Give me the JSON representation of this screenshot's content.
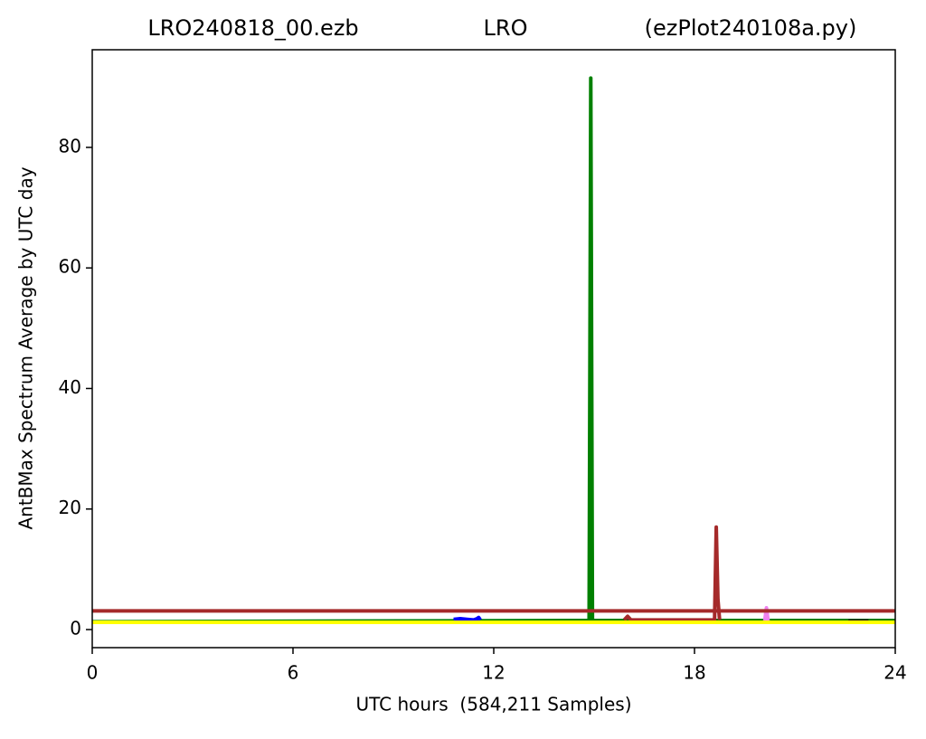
{
  "chart_data": {
    "type": "line",
    "title_left": "LRO240818_00.ezb",
    "title": "LRO",
    "title_right": "(ezPlot240108a.py)",
    "x_label": "UTC hours  (584,211 Samples)",
    "y_label": "AntBMax Spectrum Average by UTC day",
    "xlim": [
      0,
      24
    ],
    "xticks": [
      0,
      6,
      12,
      18,
      24
    ],
    "ylim": [
      -3,
      96.2
    ],
    "yticks": [
      0,
      20,
      40,
      60,
      80
    ],
    "series": [
      {
        "color": "#008000",
        "x": [
          0,
          0.35,
          14.85,
          14.9,
          14.95,
          24
        ],
        "values": [
          1.3,
          1.3,
          1.5,
          91.5,
          1.5,
          1.5
        ]
      },
      {
        "color": "#0000ff",
        "x": [
          10.8,
          11.0,
          11.2,
          11.4,
          11.5,
          11.55,
          11.6
        ],
        "values": [
          1.7,
          1.8,
          1.7,
          1.6,
          1.8,
          2.0,
          1.6
        ]
      },
      {
        "color": "#a52a2a",
        "x": [
          15.9,
          16.0,
          16.1,
          18.6,
          18.65,
          18.7,
          18.75
        ],
        "values": [
          1.6,
          2.2,
          1.6,
          1.6,
          17,
          5,
          1.6
        ]
      },
      {
        "color": "#ee82ee",
        "x": [
          20.1,
          20.15,
          20.2
        ],
        "values": [
          1.5,
          3.6,
          1.5
        ]
      },
      {
        "color": "#1a1a1a",
        "x": [
          22.6,
          23.2
        ],
        "values": [
          1.4,
          1.4
        ]
      },
      {
        "color": "#a52a2a",
        "x": [
          0,
          24
        ],
        "values": [
          3.1,
          3.1
        ]
      },
      {
        "color": "#ffff00",
        "x": [
          0,
          24
        ],
        "values": [
          1.2,
          1.2
        ]
      }
    ]
  }
}
